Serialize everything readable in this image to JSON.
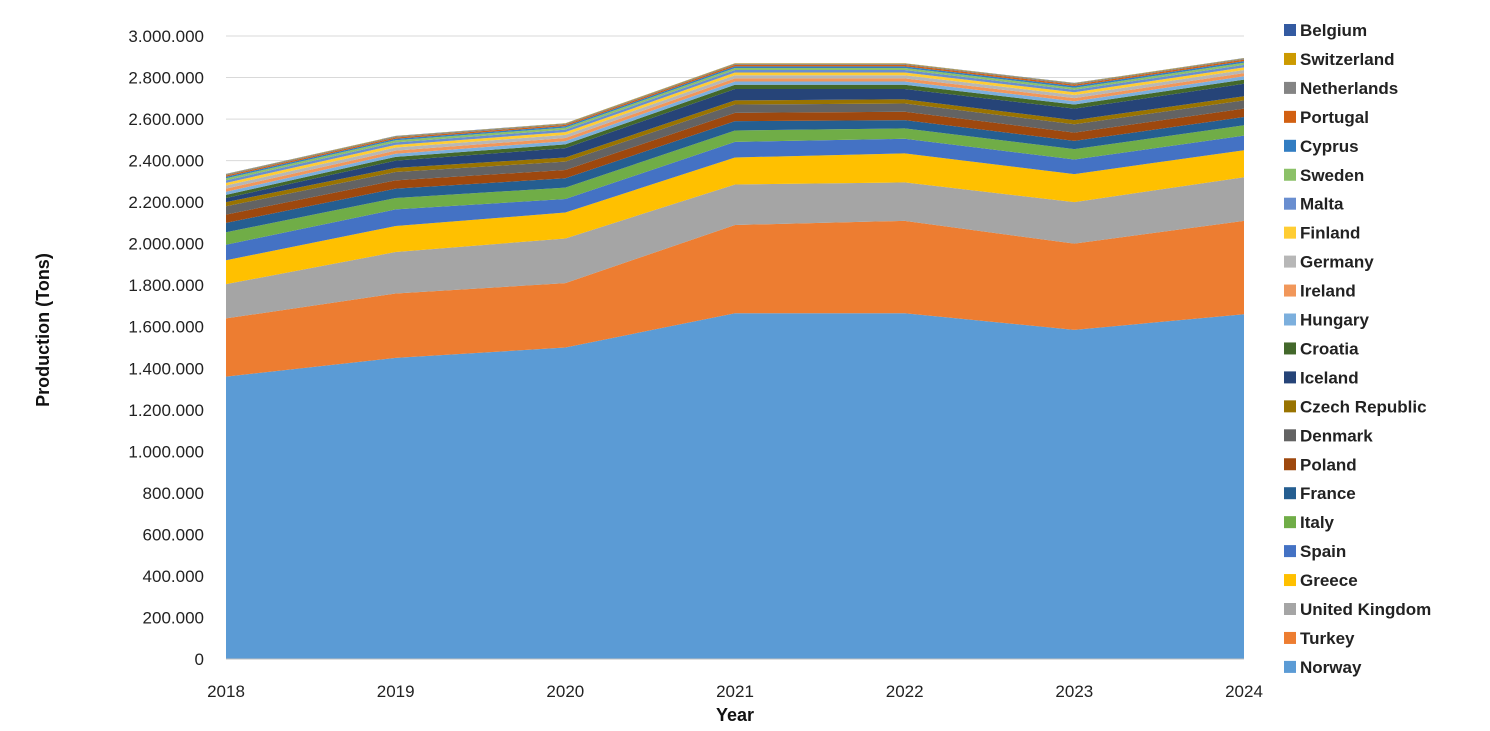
{
  "chart_data": {
    "type": "area",
    "stacked": true,
    "xlabel": "Year",
    "ylabel": "Production (Tons)",
    "x": [
      "2018",
      "2019",
      "2020",
      "2021",
      "2022",
      "2023",
      "2024"
    ],
    "ylim": [
      0,
      3000000
    ],
    "yticks": [
      0,
      200000,
      400000,
      600000,
      800000,
      1000000,
      1200000,
      1400000,
      1600000,
      1800000,
      2000000,
      2200000,
      2400000,
      2600000,
      2800000,
      3000000
    ],
    "ytick_labels": [
      "0",
      "200.000",
      "400.000",
      "600.000",
      "800.000",
      "1.000.000",
      "1.200.000",
      "1.400.000",
      "1.600.000",
      "1.800.000",
      "2.000.000",
      "2.200.000",
      "2.400.000",
      "2.600.000",
      "2.800.000",
      "3.000.000"
    ],
    "grid": "horizontal",
    "legend_position": "right",
    "series": [
      {
        "name": "Norway",
        "color": "#5b9bd5",
        "values": [
          1360000,
          1450000,
          1500000,
          1665000,
          1665000,
          1585000,
          1660000
        ]
      },
      {
        "name": "Turkey",
        "color": "#ed7d31",
        "values": [
          280000,
          310000,
          310000,
          425000,
          445000,
          415000,
          450000
        ]
      },
      {
        "name": "United Kingdom",
        "color": "#a5a5a5",
        "values": [
          165000,
          200000,
          215000,
          195000,
          185000,
          200000,
          210000
        ]
      },
      {
        "name": "Greece",
        "color": "#ffc000",
        "values": [
          115000,
          125000,
          125000,
          130000,
          140000,
          135000,
          130000
        ]
      },
      {
        "name": "Spain",
        "color": "#4472c4",
        "values": [
          75000,
          80000,
          65000,
          75000,
          70000,
          70000,
          70000
        ]
      },
      {
        "name": "Italy",
        "color": "#70ad47",
        "values": [
          60000,
          55000,
          55000,
          55000,
          50000,
          50000,
          50000
        ]
      },
      {
        "name": "France",
        "color": "#255e91",
        "values": [
          45000,
          45000,
          45000,
          45000,
          40000,
          40000,
          40000
        ]
      },
      {
        "name": "Poland",
        "color": "#9e480e",
        "values": [
          40000,
          40000,
          40000,
          40000,
          40000,
          40000,
          40000
        ]
      },
      {
        "name": "Denmark",
        "color": "#636363",
        "values": [
          40000,
          40000,
          40000,
          40000,
          40000,
          40000,
          40000
        ]
      },
      {
        "name": "Czech Republic",
        "color": "#997300",
        "values": [
          20000,
          20000,
          20000,
          20000,
          20000,
          20000,
          20000
        ]
      },
      {
        "name": "Iceland",
        "color": "#264478",
        "values": [
          20000,
          35000,
          45000,
          55000,
          50000,
          55000,
          60000
        ]
      },
      {
        "name": "Croatia",
        "color": "#43682b",
        "values": [
          15000,
          18000,
          18000,
          20000,
          20000,
          20000,
          20000
        ]
      },
      {
        "name": "Hungary",
        "color": "#7cafdd",
        "values": [
          15000,
          15000,
          16000,
          16000,
          16000,
          16000,
          16000
        ]
      },
      {
        "name": "Ireland",
        "color": "#f1975a",
        "values": [
          15000,
          15000,
          15000,
          15000,
          15000,
          15000,
          15000
        ]
      },
      {
        "name": "Germany",
        "color": "#b7b7b7",
        "values": [
          15000,
          15000,
          15000,
          15000,
          15000,
          15000,
          15000
        ]
      },
      {
        "name": "Finland",
        "color": "#ffcd33",
        "values": [
          13000,
          13000,
          13000,
          13000,
          13000,
          13000,
          13000
        ]
      },
      {
        "name": "Malta",
        "color": "#698ed0",
        "values": [
          12000,
          12000,
          12000,
          12000,
          12000,
          12000,
          12000
        ]
      },
      {
        "name": "Sweden",
        "color": "#8cc168",
        "values": [
          10000,
          10000,
          10000,
          10000,
          10000,
          10000,
          10000
        ]
      },
      {
        "name": "Cyprus",
        "color": "#327dc2",
        "values": [
          7000,
          7000,
          7000,
          8000,
          8000,
          8000,
          8000
        ]
      },
      {
        "name": "Portugal",
        "color": "#d26012",
        "values": [
          6000,
          6000,
          6000,
          7000,
          7000,
          7000,
          7000
        ]
      },
      {
        "name": "Netherlands",
        "color": "#848484",
        "values": [
          5000,
          5000,
          5000,
          5000,
          5000,
          5000,
          5000
        ]
      },
      {
        "name": "Switzerland",
        "color": "#cc9a00",
        "values": [
          2000,
          2000,
          2000,
          2000,
          2000,
          2000,
          2000
        ]
      },
      {
        "name": "Belgium",
        "color": "#335aa1",
        "values": [
          1000,
          1000,
          1000,
          1000,
          1000,
          1000,
          1000
        ]
      }
    ]
  }
}
